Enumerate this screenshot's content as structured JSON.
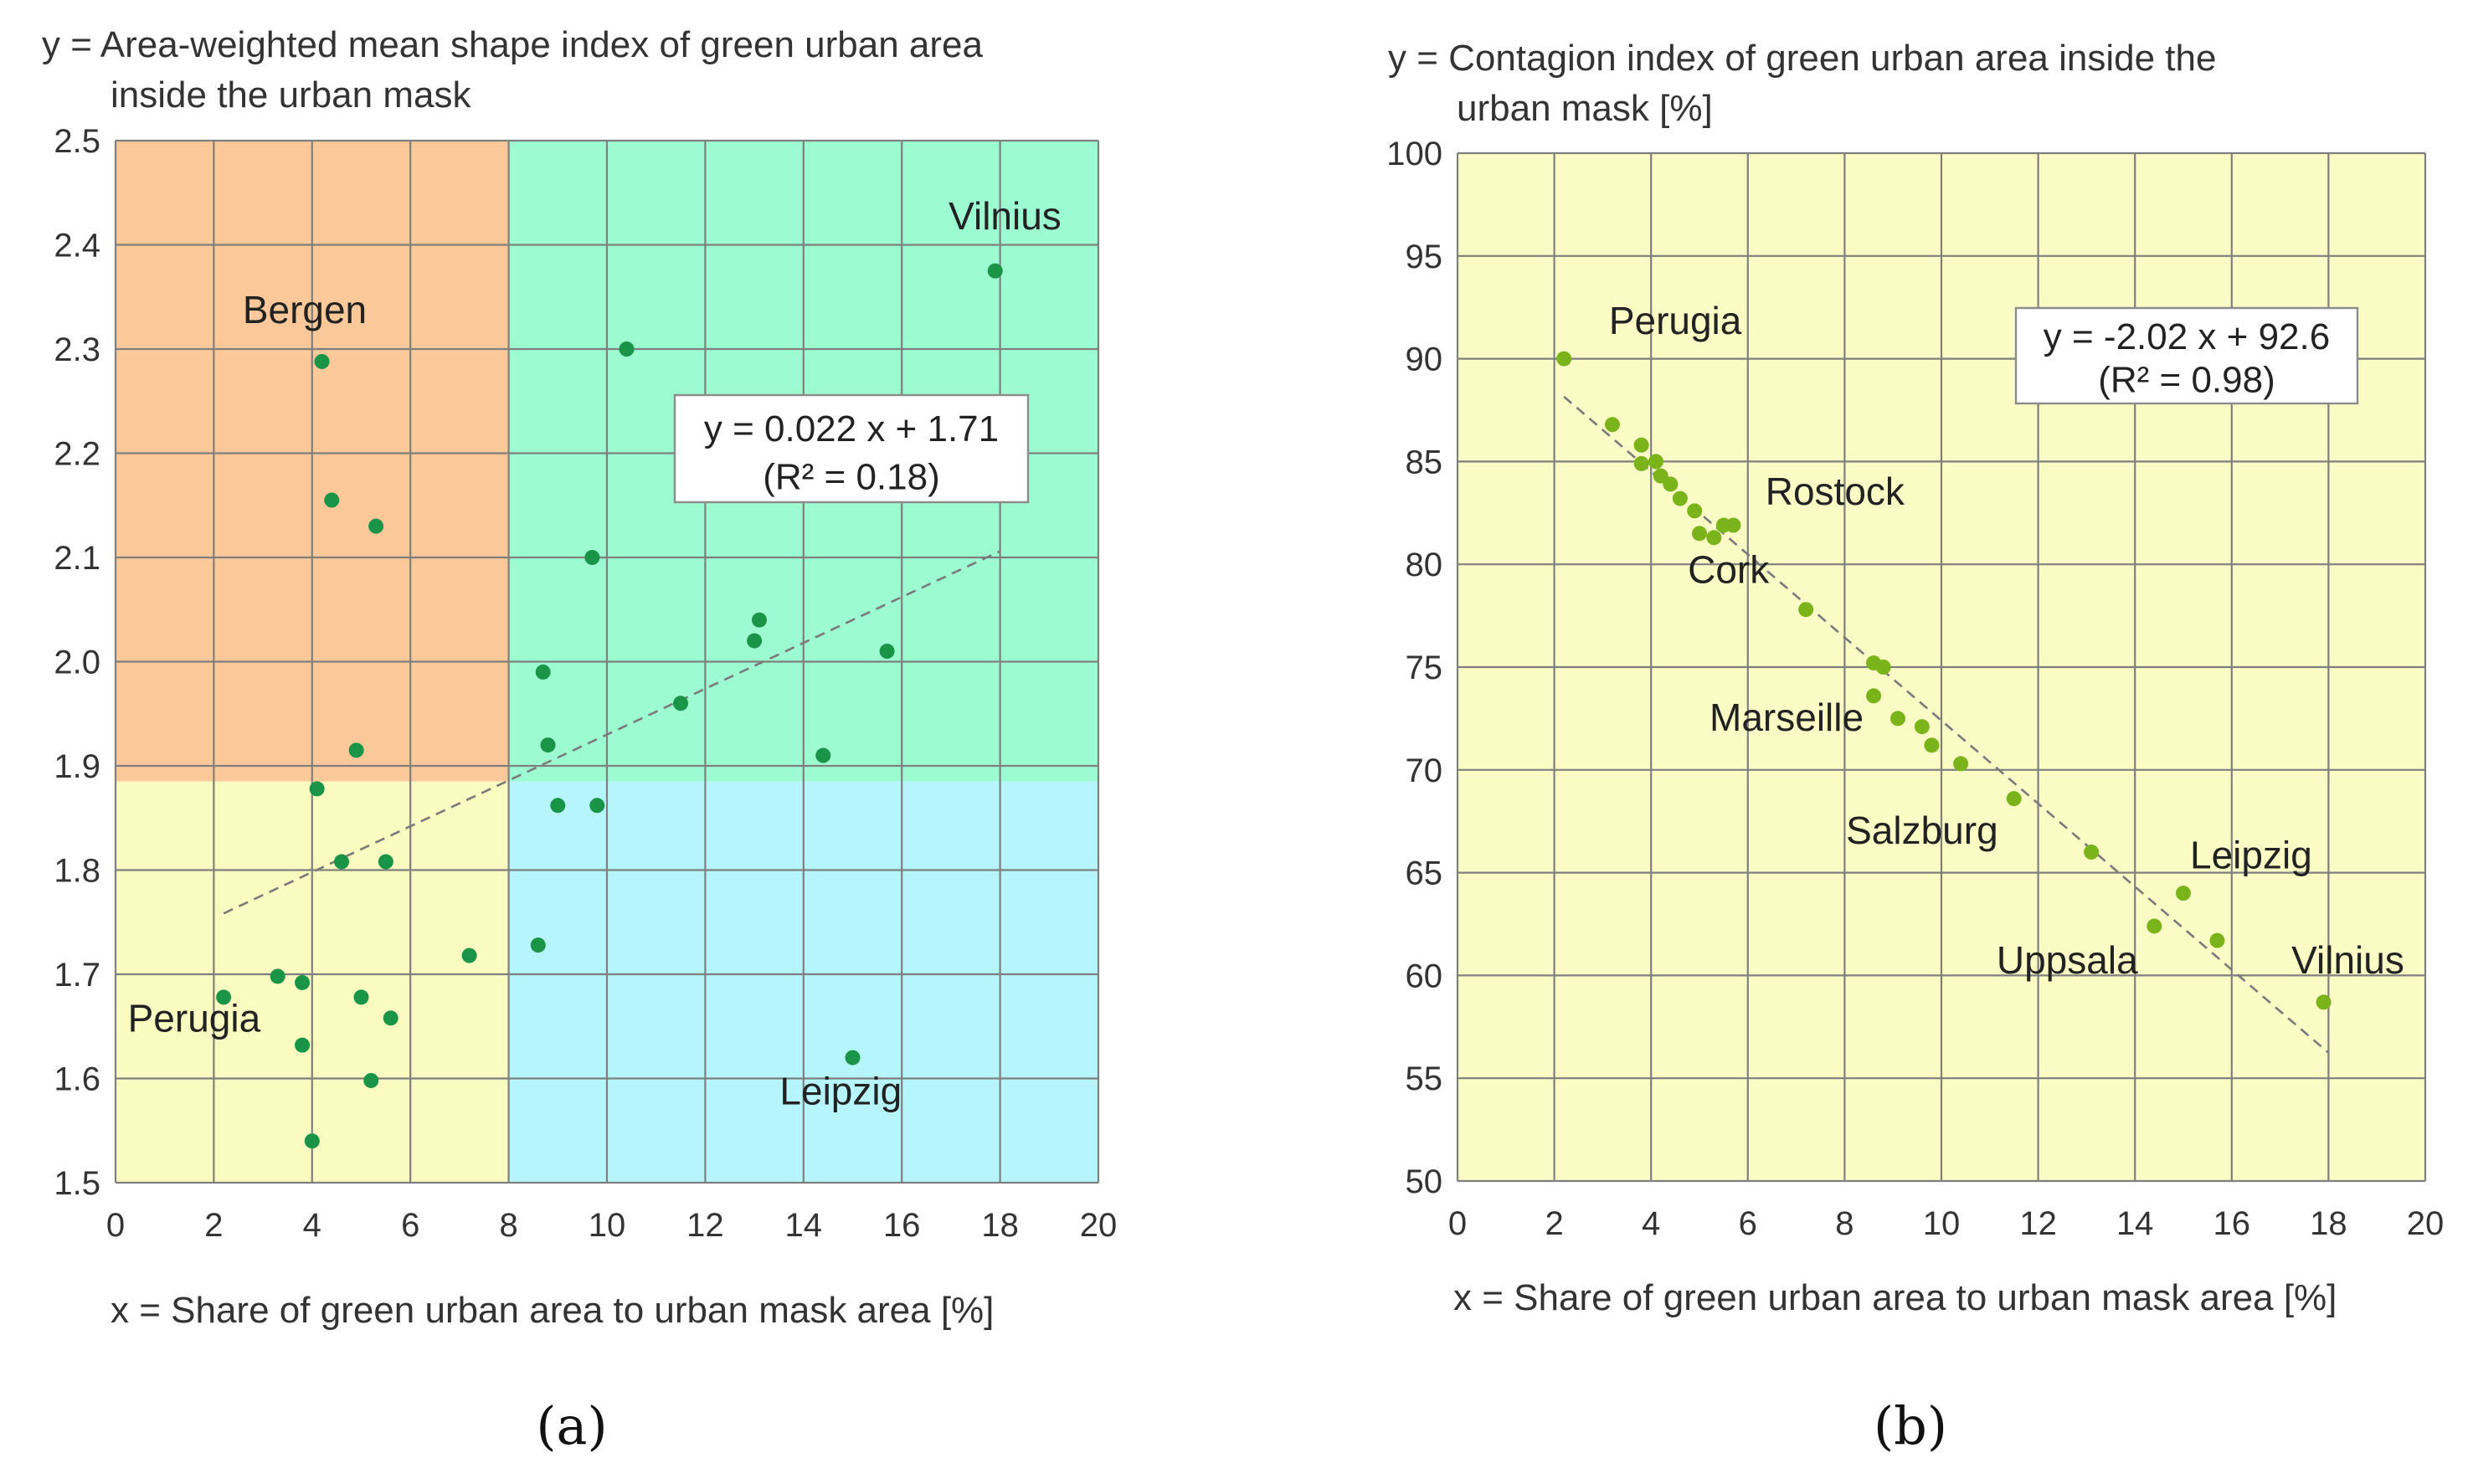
{
  "chart_data": [
    {
      "id": "a",
      "type": "scatter",
      "panel_label": "(a)",
      "ylabel_lines": [
        "y = Area-weighted mean shape index of green urban area",
        "inside the urban mask"
      ],
      "xlabel": "x = Share of green urban area to urban mask area [%]",
      "xlim": [
        0,
        20
      ],
      "ylim": [
        1.5,
        2.5
      ],
      "xticks": [
        0,
        2,
        4,
        6,
        8,
        10,
        12,
        14,
        16,
        18,
        20
      ],
      "yticks": [
        1.5,
        1.6,
        1.7,
        1.8,
        1.9,
        2.0,
        2.1,
        2.2,
        2.3,
        2.4,
        2.5
      ],
      "x_tick_labels": [
        "0",
        "2",
        "4",
        "6",
        "8",
        "10",
        "12",
        "14",
        "16",
        "18",
        "20"
      ],
      "y_tick_labels": [
        "1.5",
        "1.6",
        "1.7",
        "1.8",
        "1.9",
        "2.0",
        "2.1",
        "2.2",
        "2.3",
        "2.4",
        "2.5"
      ],
      "quadrant_split": {
        "x": 8,
        "y": 1.885
      },
      "quadrant_colors": {
        "top_left": "#fbc999",
        "top_right": "#9dfbd1",
        "bottom_left": "#f9fbc0",
        "bottom_right": "#b7f5fd"
      },
      "point_color": "#1a9446",
      "trendline": {
        "slope": 0.022,
        "intercept": 1.71,
        "x_range": [
          2.2,
          18
        ]
      },
      "equation_lines": [
        "y = 0.022 x + 1.71",
        "(R² = 0.18)"
      ],
      "points": [
        {
          "x": 4.2,
          "y": 2.288
        },
        {
          "x": 4.4,
          "y": 2.155
        },
        {
          "x": 5.3,
          "y": 2.13
        },
        {
          "x": 4.9,
          "y": 1.915
        },
        {
          "x": 4.1,
          "y": 1.878
        },
        {
          "x": 4.6,
          "y": 1.808
        },
        {
          "x": 5.5,
          "y": 1.808
        },
        {
          "x": 2.2,
          "y": 1.678
        },
        {
          "x": 3.3,
          "y": 1.698
        },
        {
          "x": 3.8,
          "y": 1.692
        },
        {
          "x": 3.8,
          "y": 1.632
        },
        {
          "x": 5.0,
          "y": 1.678
        },
        {
          "x": 5.6,
          "y": 1.658
        },
        {
          "x": 5.2,
          "y": 1.598
        },
        {
          "x": 4.0,
          "y": 1.54
        },
        {
          "x": 7.2,
          "y": 1.718
        },
        {
          "x": 8.6,
          "y": 1.728
        },
        {
          "x": 9.0,
          "y": 1.862
        },
        {
          "x": 9.8,
          "y": 1.862
        },
        {
          "x": 8.8,
          "y": 1.92
        },
        {
          "x": 8.7,
          "y": 1.99
        },
        {
          "x": 9.7,
          "y": 2.1
        },
        {
          "x": 10.4,
          "y": 2.3
        },
        {
          "x": 11.5,
          "y": 1.96
        },
        {
          "x": 13.0,
          "y": 2.02
        },
        {
          "x": 13.1,
          "y": 2.04
        },
        {
          "x": 14.4,
          "y": 1.91
        },
        {
          "x": 15.7,
          "y": 2.01
        },
        {
          "x": 15.0,
          "y": 1.62
        },
        {
          "x": 17.9,
          "y": 2.375
        }
      ],
      "annotations": [
        {
          "text": "Vilnius",
          "x": 18.1,
          "y": 2.415,
          "anchor": "middle"
        },
        {
          "text": "Bergen",
          "x": 3.85,
          "y": 2.325,
          "anchor": "middle"
        },
        {
          "text": "Perugia",
          "x": 1.6,
          "y": 1.645,
          "anchor": "middle"
        },
        {
          "text": "Leipzig",
          "x": 16.0,
          "y": 1.575,
          "anchor": "end"
        }
      ]
    },
    {
      "id": "b",
      "type": "scatter",
      "panel_label": "(b)",
      "ylabel_lines": [
        "y = Contagion index of green urban area inside the",
        "urban mask [%]"
      ],
      "xlabel": "x = Share of green urban area to urban mask area [%]",
      "xlim": [
        0,
        20
      ],
      "ylim": [
        50,
        100
      ],
      "xticks": [
        0,
        2,
        4,
        6,
        8,
        10,
        12,
        14,
        16,
        18,
        20
      ],
      "yticks": [
        50,
        55,
        60,
        65,
        70,
        75,
        80,
        85,
        90,
        95,
        100
      ],
      "x_tick_labels": [
        "0",
        "2",
        "4",
        "6",
        "8",
        "10",
        "12",
        "14",
        "16",
        "18",
        "20"
      ],
      "y_tick_labels": [
        "50",
        "55",
        "60",
        "65",
        "70",
        "75",
        "80",
        "85",
        "90",
        "95",
        "100"
      ],
      "background_color": "#fbfbc5",
      "point_color": "#7ab31a",
      "trendline": {
        "slope": -2.02,
        "intercept": 92.6,
        "x_range": [
          2.2,
          18
        ]
      },
      "equation_lines": [
        "y = -2.02 x + 92.6",
        "(R² = 0.98)"
      ],
      "points": [
        {
          "x": 2.2,
          "y": 90.0
        },
        {
          "x": 3.2,
          "y": 86.8
        },
        {
          "x": 3.8,
          "y": 85.8
        },
        {
          "x": 3.8,
          "y": 84.9
        },
        {
          "x": 4.1,
          "y": 85.0
        },
        {
          "x": 4.2,
          "y": 84.3
        },
        {
          "x": 4.4,
          "y": 83.9
        },
        {
          "x": 4.6,
          "y": 83.2
        },
        {
          "x": 4.9,
          "y": 82.6
        },
        {
          "x": 5.0,
          "y": 81.5
        },
        {
          "x": 5.3,
          "y": 81.3
        },
        {
          "x": 5.5,
          "y": 81.9
        },
        {
          "x": 5.7,
          "y": 81.9
        },
        {
          "x": 7.2,
          "y": 77.8
        },
        {
          "x": 8.6,
          "y": 75.2
        },
        {
          "x": 8.8,
          "y": 75.0
        },
        {
          "x": 8.6,
          "y": 73.6
        },
        {
          "x": 9.1,
          "y": 72.5
        },
        {
          "x": 9.6,
          "y": 72.1
        },
        {
          "x": 9.8,
          "y": 71.2
        },
        {
          "x": 10.4,
          "y": 70.3
        },
        {
          "x": 11.5,
          "y": 68.6
        },
        {
          "x": 13.1,
          "y": 66.0
        },
        {
          "x": 14.4,
          "y": 62.4
        },
        {
          "x": 15.0,
          "y": 64.0
        },
        {
          "x": 15.7,
          "y": 61.7
        },
        {
          "x": 17.9,
          "y": 58.7
        }
      ],
      "annotations": [
        {
          "text": "Perugia",
          "x": 4.5,
          "y": 91.2,
          "anchor": "middle"
        },
        {
          "text": "Rostock",
          "x": 7.8,
          "y": 82.9,
          "anchor": "middle"
        },
        {
          "text": "Cork",
          "x": 5.6,
          "y": 79.1,
          "anchor": "middle"
        },
        {
          "text": "Marseille",
          "x": 6.8,
          "y": 71.9,
          "anchor": "middle"
        },
        {
          "text": "Salzburg",
          "x": 9.6,
          "y": 66.4,
          "anchor": "middle"
        },
        {
          "text": "Leipzig",
          "x": 16.4,
          "y": 65.2,
          "anchor": "middle"
        },
        {
          "text": "Uppsala",
          "x": 12.6,
          "y": 60.1,
          "anchor": "middle"
        },
        {
          "text": "Vilnius",
          "x": 18.4,
          "y": 60.1,
          "anchor": "middle"
        }
      ]
    }
  ]
}
